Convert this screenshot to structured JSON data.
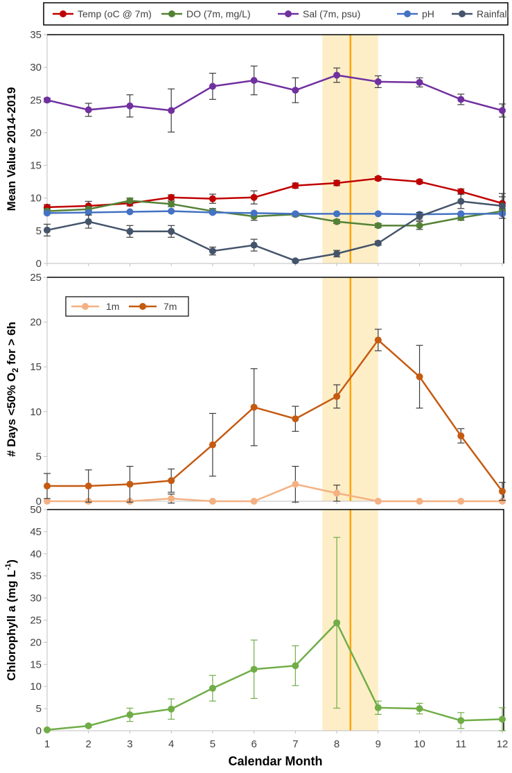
{
  "shaded_band": {
    "x": [
      7.65,
      9.0
    ],
    "color": "#fdeec7"
  },
  "marker_line": {
    "x": 8.33,
    "color": "#ffa500"
  },
  "chart_data": [
    {
      "type": "line",
      "ylabel": "Mean Value 2014-2019",
      "ylim": [
        0,
        35
      ],
      "yticks": [
        0,
        5,
        10,
        15,
        20,
        25,
        30,
        35
      ],
      "legend_position": "top",
      "x": [
        1,
        2,
        3,
        4,
        5,
        6,
        7,
        8,
        9,
        10,
        11,
        12
      ],
      "series": [
        {
          "name": "Temp (oC @ 7m)",
          "color": "#c00000",
          "values": [
            8.6,
            8.8,
            9.2,
            10.1,
            9.9,
            10.1,
            11.9,
            12.3,
            13.0,
            12.5,
            11.0,
            9.2
          ],
          "err": [
            0.4,
            0.7,
            0.4,
            0.4,
            0.7,
            1.0,
            0.4,
            0.4,
            0.3,
            0.3,
            0.4,
            1.0
          ]
        },
        {
          "name": "DO (7m, mg/L)",
          "color": "#538135",
          "values": [
            8.0,
            8.3,
            9.6,
            9.1,
            8.0,
            7.2,
            7.5,
            6.4,
            5.8,
            5.8,
            7.0,
            8.0
          ],
          "err": [
            0.4,
            0.4,
            0.4,
            0.4,
            0.4,
            0.6,
            0.3,
            0.3,
            0.3,
            0.6,
            0.4,
            0.4
          ]
        },
        {
          "name": "Sal (7m, psu)",
          "color": "#7030a0",
          "values": [
            25.0,
            23.5,
            24.1,
            23.4,
            27.1,
            28.0,
            26.5,
            28.8,
            27.8,
            27.7,
            25.1,
            23.4
          ],
          "err": [
            0.3,
            1.0,
            1.7,
            3.3,
            2.0,
            2.2,
            1.9,
            1.1,
            0.9,
            0.7,
            0.8,
            1.0
          ]
        },
        {
          "name": "pH",
          "color": "#4472c4",
          "values": [
            7.7,
            7.8,
            7.9,
            8.0,
            7.8,
            7.7,
            7.6,
            7.6,
            7.6,
            7.5,
            7.6,
            7.6
          ],
          "err": [
            0.1,
            0.1,
            0.1,
            0.1,
            0.1,
            0.1,
            0.1,
            0.1,
            0.1,
            0.1,
            0.1,
            0.1
          ]
        },
        {
          "name": "Rainfall",
          "color": "#44546a",
          "values": [
            5.1,
            6.4,
            4.9,
            4.9,
            1.9,
            2.8,
            0.4,
            1.5,
            3.1,
            7.2,
            9.5,
            8.8
          ],
          "err": [
            0.9,
            1.0,
            0.9,
            0.9,
            0.6,
            0.9,
            0.2,
            0.5,
            0.3,
            0.6,
            1.1,
            1.9
          ]
        }
      ]
    },
    {
      "type": "line",
      "ylabel": "# Days <50% O2 for > 6h",
      "ylim": [
        0,
        25
      ],
      "yticks": [
        0,
        5,
        10,
        15,
        20,
        25
      ],
      "legend_position": "top-left",
      "x": [
        1,
        2,
        3,
        4,
        5,
        6,
        7,
        8,
        9,
        10,
        11,
        12
      ],
      "series": [
        {
          "name": "1m",
          "color": "#f4b183",
          "values": [
            0,
            0,
            0,
            0.3,
            0,
            0,
            1.9,
            0.9,
            0,
            0,
            0,
            0
          ],
          "err": [
            0,
            0,
            0,
            0.5,
            0,
            0,
            2.0,
            0.9,
            0,
            0,
            0,
            0
          ]
        },
        {
          "name": "7m",
          "color": "#c55a11",
          "values": [
            1.7,
            1.7,
            1.9,
            2.3,
            6.3,
            10.5,
            9.2,
            11.7,
            18.0,
            13.9,
            7.3,
            1.1
          ],
          "err": [
            1.4,
            1.8,
            2.0,
            1.3,
            3.5,
            4.3,
            1.4,
            1.3,
            1.2,
            3.5,
            0.8,
            1.0
          ]
        }
      ]
    },
    {
      "type": "line",
      "ylabel": "Chlorophyll a (mg L-1)",
      "xlabel": "Calendar Month",
      "ylim": [
        0,
        50
      ],
      "yticks": [
        0,
        5,
        10,
        15,
        20,
        25,
        30,
        35,
        40,
        45,
        50
      ],
      "x": [
        1,
        2,
        3,
        4,
        5,
        6,
        7,
        8,
        9,
        10,
        11,
        12
      ],
      "series": [
        {
          "color": "#70ad47",
          "values": [
            0.2,
            1.1,
            3.6,
            4.9,
            9.6,
            13.9,
            14.7,
            24.4,
            5.2,
            5.0,
            2.3,
            2.6
          ],
          "err": [
            0.2,
            0.3,
            1.5,
            2.3,
            2.9,
            6.6,
            4.5,
            19.3,
            1.5,
            1.2,
            1.8,
            2.6
          ]
        }
      ],
      "xticks": [
        1,
        2,
        3,
        4,
        5,
        6,
        7,
        8,
        9,
        10,
        11,
        12
      ]
    }
  ]
}
